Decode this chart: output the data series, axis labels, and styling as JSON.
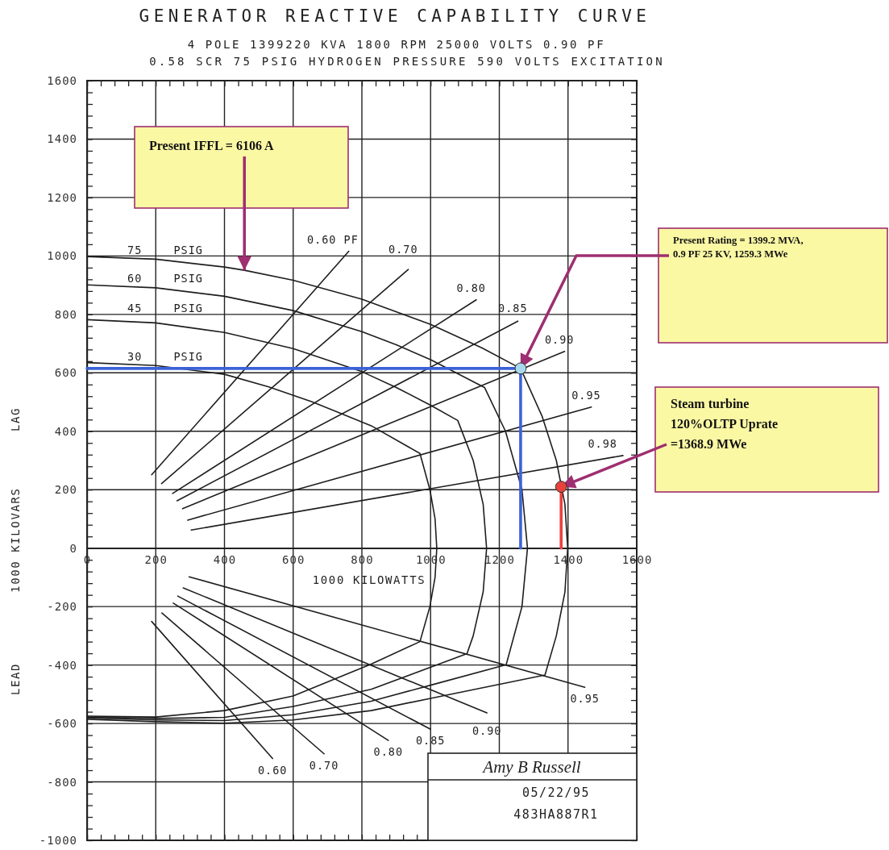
{
  "chart_data": {
    "type": "line",
    "title": "GENERATOR REACTIVE CAPABILITY CURVE",
    "subtitle": "4 POLE 1399220 KVA 1800 RPM 25000 VOLTS 0.90 PF",
    "xlabel": "1000 KILOWATTS",
    "ylabel": "1000 KILOVARS",
    "annotations": [
      {
        "text": "Present IFFL = 6106 A",
        "x": 458,
        "y": 951
      },
      {
        "text": "Present Rating = 1399.2 MVA, 0.9 PF 25 KV, 1259.3 MWe",
        "x": 1262,
        "y": 615
      },
      {
        "text": "Steam turbine 120%OLTP Uprate =1368.9 MWe",
        "x": 1380,
        "y": 210
      },
      "0.58 SCR 75 PSIG HYDROGEN PRESSURE 590 VOLTS EXCITATION",
      "LAG",
      "LEAD",
      "Amy B Russell",
      "05/22/95",
      "483HA887R1"
    ],
    "xlim": [
      0,
      1600
    ],
    "ylim": [
      -1000,
      1600
    ],
    "xticks": [
      0,
      {
        "value": 40,
        "label": null
      },
      {
        "value": 80,
        "label": null
      },
      {
        "value": 120,
        "label": null
      },
      {
        "value": 160,
        "label": null
      },
      200,
      {
        "value": 240,
        "label": null
      },
      {
        "value": 280,
        "label": null
      },
      {
        "value": 320,
        "label": null
      },
      {
        "value": 360,
        "label": null
      },
      400,
      {
        "value": 440,
        "label": null
      },
      {
        "value": 480,
        "label": null
      },
      {
        "value": 520,
        "label": null
      },
      {
        "value": 560,
        "label": null
      },
      600,
      {
        "value": 640,
        "label": null
      },
      {
        "value": 680,
        "label": null
      },
      {
        "value": 720,
        "label": null
      },
      {
        "value": 760,
        "label": null
      },
      800,
      {
        "value": 840,
        "label": null
      },
      {
        "value": 880,
        "label": null
      },
      {
        "value": 920,
        "label": null
      },
      {
        "value": 960,
        "label": null
      },
      1000,
      {
        "value": 1040,
        "label": null
      },
      {
        "value": 1080,
        "label": null
      },
      {
        "value": 1120,
        "label": null
      },
      {
        "value": 1160,
        "label": null
      },
      1200,
      {
        "value": 1240,
        "label": null
      },
      {
        "value": 1280,
        "label": null
      },
      {
        "value": 1320,
        "label": null
      },
      {
        "value": 1360,
        "label": null
      },
      1400,
      {
        "value": 1440,
        "label": null
      },
      {
        "value": 1480,
        "label": null
      },
      {
        "value": 1520,
        "label": null
      },
      {
        "value": 1560,
        "label": null
      },
      1600
    ],
    "yticks": [
      -1000,
      {
        "value": -960,
        "label": null
      },
      {
        "value": -920,
        "label": null
      },
      {
        "value": -880,
        "label": null
      },
      {
        "value": -840,
        "label": null
      },
      -800,
      {
        "value": -760,
        "label": null
      },
      {
        "value": -720,
        "label": null
      },
      {
        "value": -680,
        "label": null
      },
      {
        "value": -640,
        "label": null
      },
      -600,
      {
        "value": -560,
        "label": null
      },
      {
        "value": -520,
        "label": null
      },
      {
        "value": -480,
        "label": null
      },
      {
        "value": -440,
        "label": null
      },
      -400,
      {
        "value": -360,
        "label": null
      },
      {
        "value": -320,
        "label": null
      },
      {
        "value": -280,
        "label": null
      },
      {
        "value": -240,
        "label": null
      },
      -200,
      {
        "value": -160,
        "label": null
      },
      {
        "value": -120,
        "label": null
      },
      {
        "value": -80,
        "label": null
      },
      {
        "value": -40,
        "label": null
      },
      0,
      {
        "value": 40,
        "label": null
      },
      {
        "value": 80,
        "label": null
      },
      {
        "value": 120,
        "label": null
      },
      {
        "value": 160,
        "label": null
      },
      200,
      {
        "value": 240,
        "label": null
      },
      {
        "value": 280,
        "label": null
      },
      {
        "value": 320,
        "label": null
      },
      {
        "value": 360,
        "label": null
      },
      400,
      {
        "value": 440,
        "label": null
      },
      {
        "value": 480,
        "label": null
      },
      {
        "value": 520,
        "label": null
      },
      {
        "value": 560,
        "label": null
      },
      600,
      {
        "value": 640,
        "label": null
      },
      {
        "value": 680,
        "label": null
      },
      {
        "value": 720,
        "label": null
      },
      {
        "value": 760,
        "label": null
      },
      800,
      {
        "value": 840,
        "label": null
      },
      {
        "value": 880,
        "label": null
      },
      {
        "value": 920,
        "label": null
      },
      {
        "value": 960,
        "label": null
      },
      1000,
      {
        "value": 1040,
        "label": null
      },
      {
        "value": 1080,
        "label": null
      },
      {
        "value": 1120,
        "label": null
      },
      {
        "value": 1160,
        "label": null
      },
      1200,
      {
        "value": 1240,
        "label": null
      },
      {
        "value": 1280,
        "label": null
      },
      {
        "value": 1320,
        "label": null
      },
      {
        "value": 1360,
        "label": null
      },
      1400,
      {
        "value": 1440,
        "label": null
      },
      {
        "value": 1480,
        "label": null
      },
      {
        "value": 1520,
        "label": null
      },
      {
        "value": 1560,
        "label": null
      },
      1600
    ],
    "grid": true,
    "series": [
      {
        "name": "75 PSIG",
        "color": "#1e1e1e",
        "x": [
          0,
          200,
          400,
          458,
          600,
          800,
          1000,
          1150,
          1262,
          1325,
          1366,
          1391,
          1399,
          1391,
          1366,
          1333,
          1000,
          827,
          600,
          400,
          200,
          0
        ],
        "values": [
          998,
          989,
          962,
          951,
          917,
          852,
          766,
          685,
          615,
          450,
          300,
          150,
          0,
          -150,
          -300,
          -434,
          -514,
          -556,
          -588,
          -599,
          -594,
          -586
        ]
      },
      {
        "name": "60 PSIG",
        "color": "#1e1e1e",
        "x": [
          0,
          200,
          400,
          600,
          800,
          900,
          1000,
          1157,
          1218,
          1266,
          1282,
          1266,
          1220,
          1000,
          827,
          600,
          400,
          200,
          0
        ],
        "values": [
          901,
          891,
          862,
          813,
          741,
          696,
          645,
          550,
          400,
          200,
          0,
          -200,
          -399,
          -469,
          -524,
          -570,
          -590,
          -588,
          -582
        ]
      },
      {
        "name": "45 PSIG",
        "color": "#1e1e1e",
        "x": [
          0,
          200,
          400,
          600,
          800,
          900,
          1000,
          1079,
          1124,
          1153,
          1163,
          1153,
          1124,
          1106,
          827,
          600,
          400,
          200,
          0
        ],
        "values": [
          782,
          771,
          738,
          683,
          604,
          550,
          489,
          437,
          300,
          150,
          0,
          -150,
          -300,
          -361,
          -483,
          -542,
          -579,
          -583,
          -578
        ]
      },
      {
        "name": "30 PSIG",
        "color": "#1e1e1e",
        "x": [
          0,
          200,
          400,
          529,
          655,
          827,
          969,
          998,
          1013,
          1018,
          1013,
          998,
          969,
          827,
          600,
          400,
          200,
          0
        ],
        "values": [
          635,
          625,
          595,
          552,
          501,
          419,
          324,
          200,
          100,
          0,
          -100,
          -200,
          -320,
          -397,
          -506,
          -556,
          -578,
          -575
        ]
      },
      {
        "name": "0.60 PF",
        "color": "#1e1e1e",
        "x": [
          188,
          762
        ],
        "values": [
          251,
          1016
        ]
      },
      {
        "name": "0.70",
        "color": "#1e1e1e",
        "x": [
          217,
          935
        ],
        "values": [
          221,
          954
        ]
      },
      {
        "name": "0.80",
        "color": "#1e1e1e",
        "x": [
          249,
          1133
        ],
        "values": [
          187,
          850
        ]
      },
      {
        "name": "0.85",
        "color": "#1e1e1e",
        "x": [
          262,
          1254
        ],
        "values": [
          162,
          777
        ]
      },
      {
        "name": "0.90",
        "color": "#1e1e1e",
        "x": [
          278,
          1390
        ],
        "values": [
          135,
          673
        ]
      },
      {
        "name": "0.95",
        "color": "#1e1e1e",
        "x": [
          293,
          1468
        ],
        "values": [
          96,
          483
        ]
      },
      {
        "name": "0.98",
        "color": "#1e1e1e",
        "x": [
          303,
          1560
        ],
        "values": [
          62,
          317
        ]
      },
      {
        "name": "0.60",
        "color": "#1e1e1e",
        "x": [
          188,
          540
        ],
        "values": [
          -251,
          -720
        ]
      },
      {
        "name": "0.70",
        "color": "#1e1e1e",
        "x": [
          218,
          690
        ],
        "values": [
          -222,
          -704
        ]
      },
      {
        "name": "0.80",
        "color": "#1e1e1e",
        "x": [
          251,
          877
        ],
        "values": [
          -188,
          -658
        ]
      },
      {
        "name": "0.85",
        "color": "#1e1e1e",
        "x": [
          264,
          1000
        ],
        "values": [
          -164,
          -620
        ]
      },
      {
        "name": "0.90",
        "color": "#1e1e1e",
        "x": [
          280,
          1164
        ],
        "values": [
          -136,
          -564
        ]
      },
      {
        "name": "0.95",
        "color": "#1e1e1e",
        "x": [
          297,
          1449
        ],
        "values": [
          -98,
          -476
        ]
      },
      {
        "color": "#3b63d9",
        "x": [
          0,
          1262,
          1262
        ],
        "values": [
          615,
          615,
          0
        ]
      },
      {
        "color": "#ee4040",
        "x": [
          1380,
          1380
        ],
        "values": [
          210,
          0
        ]
      },
      {
        "type": "scatter",
        "color": "#a9d9ec",
        "marker": "circle",
        "x": [
          1262
        ],
        "values": [
          615
        ]
      },
      {
        "type": "scatter",
        "color": "#e8423c",
        "marker": "circle",
        "x": [
          1380
        ],
        "values": [
          210
        ]
      }
    ]
  }
}
